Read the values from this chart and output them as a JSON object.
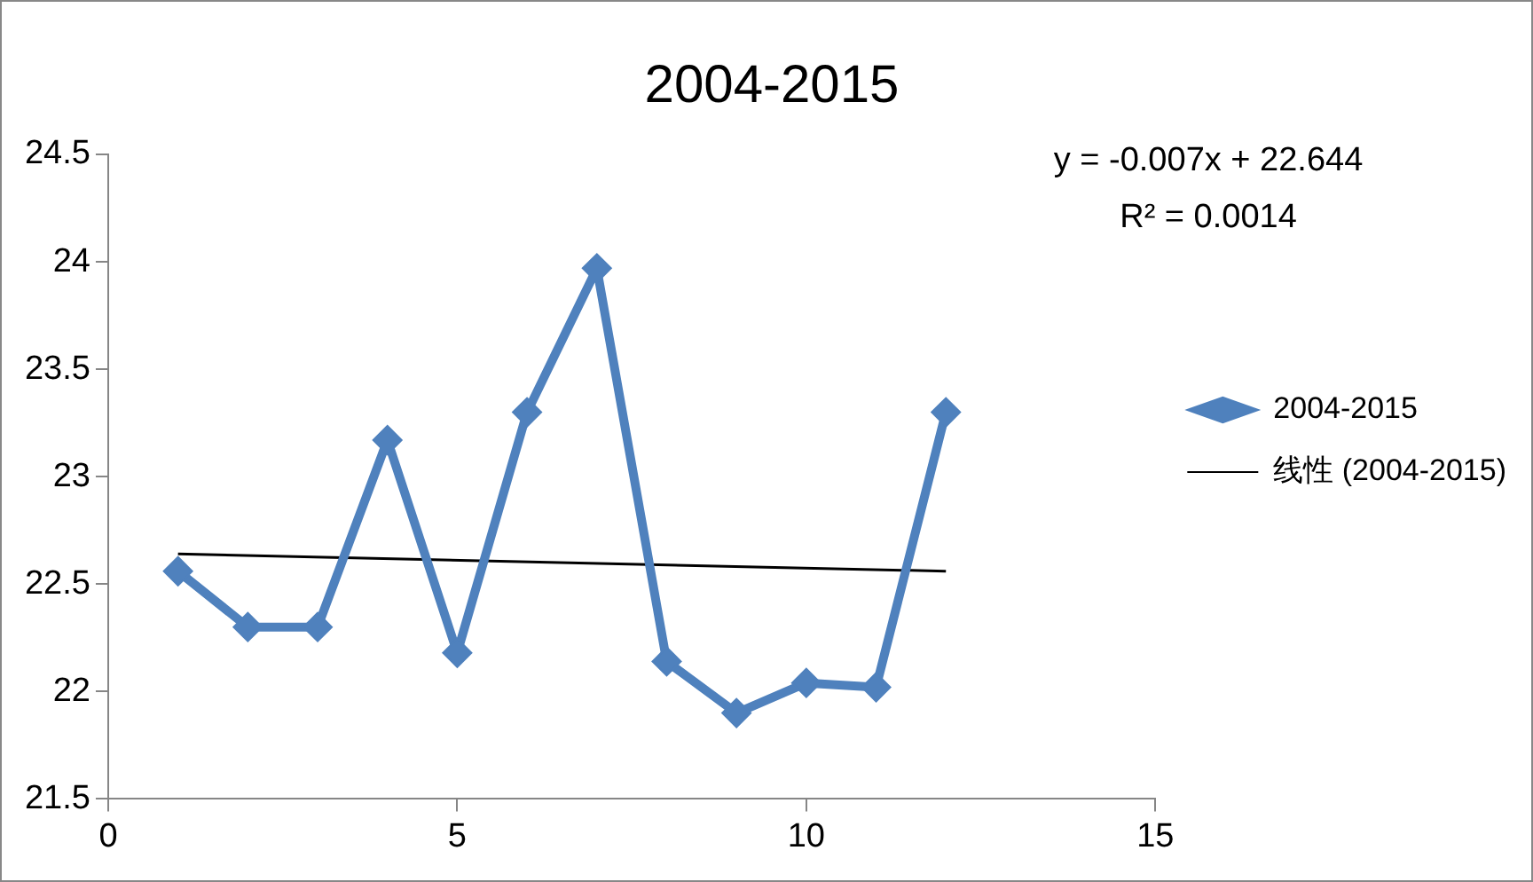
{
  "chart_data": {
    "type": "line",
    "title": "2004-2015",
    "x": [
      1,
      2,
      3,
      4,
      5,
      6,
      7,
      8,
      9,
      10,
      11,
      12
    ],
    "series": [
      {
        "name": "2004-2015",
        "color": "#4f81bd",
        "values": [
          22.56,
          22.3,
          22.3,
          23.17,
          22.18,
          23.3,
          23.97,
          22.14,
          21.9,
          22.04,
          22.02,
          23.3
        ],
        "marker": "diamond"
      },
      {
        "name": "线性 (2004-2015)",
        "type": "line",
        "color": "#000000",
        "x": [
          1,
          12
        ],
        "values": [
          22.64,
          22.56
        ],
        "marker": "none"
      }
    ],
    "xlim": [
      0,
      15
    ],
    "xticks": [
      0,
      5,
      10,
      15
    ],
    "ylim": [
      21.5,
      24.5
    ],
    "yticks": [
      21.5,
      22,
      22.5,
      23,
      23.5,
      24,
      24.5
    ],
    "annotations": [
      "y = -0.007x + 22.644",
      "R² = 0.0014"
    ],
    "grid": false,
    "legend": "right"
  }
}
